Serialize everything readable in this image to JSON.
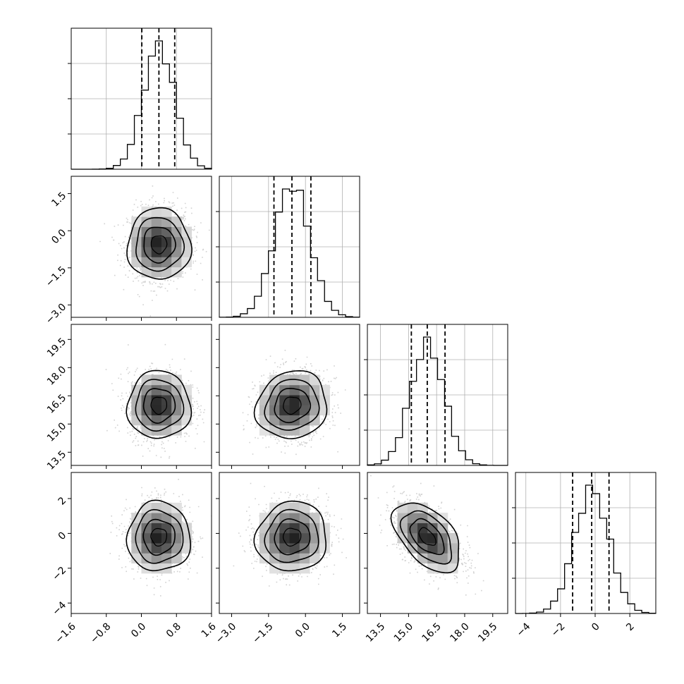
{
  "chart_data": {
    "type": "corner",
    "parameters": [
      {
        "index": 0,
        "range": [
          -1.6,
          1.6
        ],
        "ticks": [
          "−1.6",
          "−0.8",
          "0.0",
          "0.8",
          "1.6"
        ],
        "tick_values": [
          -1.6,
          -0.8,
          0.0,
          0.8,
          1.6
        ],
        "mean": 0.4,
        "sd": 0.36,
        "quantiles": [
          0.01,
          0.4,
          0.76
        ]
      },
      {
        "index": 1,
        "range": [
          -3.5,
          2.2
        ],
        "ticks": [
          "−3.0",
          "−1.5",
          "0.0",
          "1.5"
        ],
        "tick_values": [
          -3.0,
          -1.5,
          0.0,
          1.5
        ],
        "mean": -0.55,
        "sd": 0.72,
        "quantiles": [
          -1.28,
          -0.55,
          0.22
        ]
      },
      {
        "index": 2,
        "range": [
          12.8,
          20.3
        ],
        "ticks": [
          "13.5",
          "15.0",
          "16.5",
          "18.0",
          "19.5"
        ],
        "tick_values": [
          13.5,
          15.0,
          16.5,
          18.0,
          19.5
        ],
        "mean": 16.0,
        "sd": 0.9,
        "quantiles": [
          15.15,
          16.0,
          16.95
        ]
      },
      {
        "index": 3,
        "range": [
          -4.6,
          3.5
        ],
        "ticks": [
          "−4",
          "−2",
          "0",
          "2"
        ],
        "tick_values": [
          -4,
          -2,
          0,
          2
        ],
        "mean": -0.2,
        "sd": 1.0,
        "quantiles": [
          -1.3,
          -0.2,
          0.8
        ]
      }
    ],
    "correlations": [
      {
        "x": 0,
        "y": 1,
        "rho": 0.0
      },
      {
        "x": 0,
        "y": 2,
        "rho": 0.0
      },
      {
        "x": 0,
        "y": 3,
        "rho": 0.0
      },
      {
        "x": 1,
        "y": 2,
        "rho": 0.1
      },
      {
        "x": 1,
        "y": 3,
        "rho": 0.05
      },
      {
        "x": 2,
        "y": 3,
        "rho": -0.5
      }
    ],
    "grid": true,
    "colors": {
      "line": "#000000",
      "grid": "#b0b0b0",
      "points": "#9a9a9a",
      "frame": "#000000"
    }
  }
}
